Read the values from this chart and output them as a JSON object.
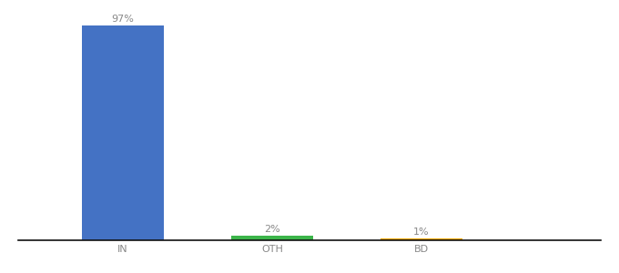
{
  "categories": [
    "IN",
    "OTH",
    "BD"
  ],
  "values": [
    97,
    2,
    1
  ],
  "bar_colors": [
    "#4472c4",
    "#3cb54a",
    "#f0a500"
  ],
  "value_labels": [
    "97%",
    "2%",
    "1%"
  ],
  "ylim": [
    0,
    105
  ],
  "background_color": "#ffffff",
  "label_color": "#888888",
  "label_fontsize": 8,
  "tick_fontsize": 8,
  "bar_width": 0.55,
  "x_positions": [
    1,
    2,
    3
  ],
  "xlim": [
    0.3,
    4.2
  ]
}
